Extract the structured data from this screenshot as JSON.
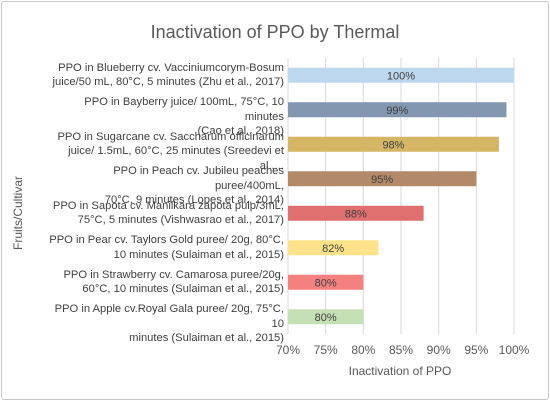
{
  "chart_data": {
    "type": "bar",
    "orientation": "horizontal",
    "title": "Inactivation of PPO by Thermal",
    "xlabel": "Inactivation of PPO",
    "ylabel": "Fruits/Cultivar",
    "xlim": [
      70,
      100
    ],
    "x_ticks": [
      "70%",
      "75%",
      "80%",
      "85%",
      "90%",
      "95%",
      "100%"
    ],
    "grid": "vertical",
    "legend": "none",
    "categories": [
      "PPO in Blueberry cv. Vacciniumcorym-Bosum juice/50 mL, 80°C, 5 minutes (Zhu et al., 2017)",
      "PPO in Bayberry juice/ 100mL, 75°C, 10 minutes (Cao et al., 2018)",
      "PPO in Sugarcane cv. Saccharum officinarum juice/ 1.5mL, 60°C, 25 minutes (Sreedevi et al.,...",
      "PPO in Peach cv. Jubileu peaches puree/400mL, 70°C, 9 minutes (Lopes et al., 2014)",
      "PPO in Sapota cv. Manilkara zapota pulp/3mL, 75°C, 5 minutes (Vishwasrao et al., 2017)",
      "PPO in Pear cv. Taylors Gold puree/ 20g, 80°C, 10 minutes (Sulaiman et al., 2015)",
      "PPO in Strawberry cv. Camarosa puree/20g, 60°C, 10 minutes (Sulaiman et al., 2015)",
      "PPO in Apple cv.Royal Gala puree/ 20g, 75°C, 10 minutes (Sulaiman et al., 2015)"
    ],
    "category_lines": [
      [
        "PPO in Blueberry cv. Vacciniumcorym-Bosum",
        "juice/50 mL, 80°C, 5 minutes (Zhu et al., 2017)"
      ],
      [
        "PPO in Bayberry juice/ 100mL, 75°C, 10 minutes",
        "(Cao et al., 2018)"
      ],
      [
        "PPO in Sugarcane cv. Saccharum officinarum",
        "juice/ 1.5mL, 60°C, 25 minutes (Sreedevi et al.,..."
      ],
      [
        "PPO in Peach cv. Jubileu peaches puree/400mL,",
        "70°C, 9 minutes (Lopes et al., 2014)"
      ],
      [
        "PPO in Sapota cv. Manilkara zapota pulp/3mL,",
        "75°C, 5 minutes (Vishwasrao et al., 2017)"
      ],
      [
        "PPO in Pear cv. Taylors Gold puree/ 20g, 80°C,",
        "10 minutes (Sulaiman et al., 2015)"
      ],
      [
        "PPO in Strawberry cv. Camarosa puree/20g,",
        "60°C, 10 minutes (Sulaiman et al., 2015)"
      ],
      [
        "PPO in Apple cv.Royal Gala puree/ 20g, 75°C, 10",
        "minutes (Sulaiman et al., 2015)"
      ]
    ],
    "values": [
      100,
      99,
      98,
      95,
      88,
      82,
      80,
      80
    ],
    "data_labels": [
      "100%",
      "99%",
      "98%",
      "95%",
      "88%",
      "82%",
      "80%",
      "80%"
    ],
    "colors": [
      "#bdd7ee",
      "#8497b0",
      "#d4b664",
      "#b28a6a",
      "#e06f6f",
      "#ffe38a",
      "#f58080",
      "#c5e0b4"
    ]
  }
}
